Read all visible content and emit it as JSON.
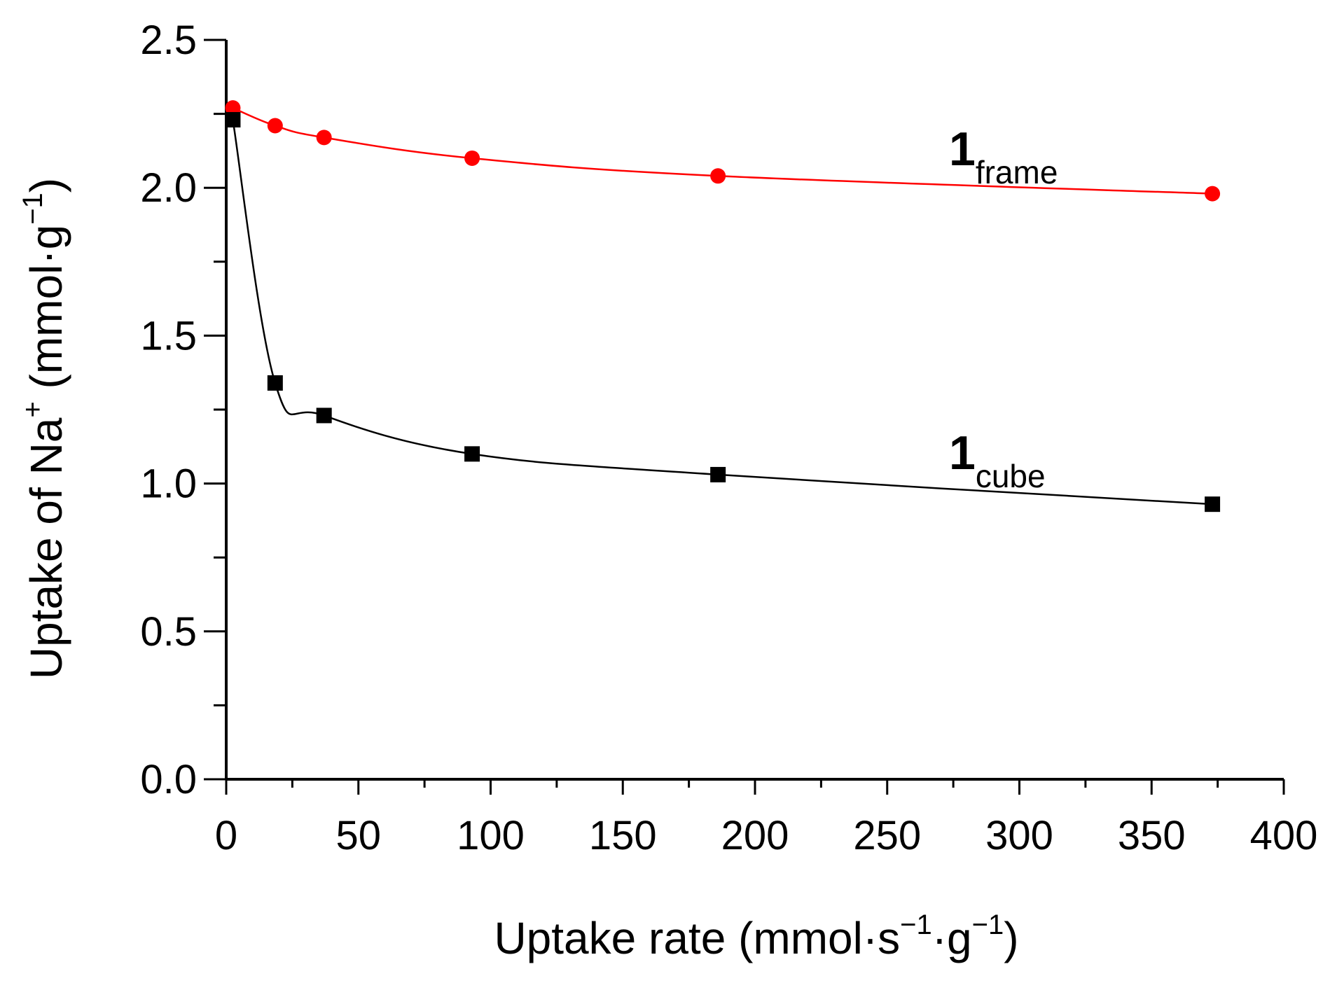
{
  "chart_data": {
    "type": "line",
    "title": "",
    "xlabel": {
      "prefix": "Uptake rate (mmol·s",
      "exp1": "−1",
      "middle": "·g",
      "exp2": "−1",
      "suffix": ")"
    },
    "ylabel": {
      "prefix": "Uptake of Na",
      "exp1": "+",
      "middle": " (mmol·g",
      "exp2": "−1",
      "suffix": ")"
    },
    "xlim": [
      0,
      400
    ],
    "ylim": [
      0,
      2.5
    ],
    "x_ticks": [
      0,
      50,
      100,
      150,
      200,
      250,
      300,
      350,
      400
    ],
    "x_tick_labels": [
      "0",
      "50",
      "100",
      "150",
      "200",
      "250",
      "300",
      "350",
      "400"
    ],
    "x_minor_step": 25,
    "y_ticks": [
      0,
      0.5,
      1.0,
      1.5,
      2.0,
      2.5
    ],
    "y_tick_labels": [
      "0.0",
      "0.5",
      "1.0",
      "1.5",
      "2.0",
      "2.5"
    ],
    "y_minor_step": 0.25,
    "grid": false,
    "series": [
      {
        "name": "frame",
        "label_main": "1",
        "label_sub": "frame",
        "color": "#ff0000",
        "marker": "circle",
        "x": [
          2.5,
          18.5,
          37,
          93,
          186,
          373
        ],
        "y": [
          2.27,
          2.21,
          2.17,
          2.1,
          2.04,
          1.98
        ]
      },
      {
        "name": "cube",
        "label_main": "1",
        "label_sub": "cube",
        "color": "#000000",
        "marker": "square",
        "x": [
          2.5,
          18.5,
          37,
          93,
          186,
          373
        ],
        "y": [
          2.23,
          1.34,
          1.23,
          1.1,
          1.03,
          0.93
        ]
      }
    ]
  }
}
